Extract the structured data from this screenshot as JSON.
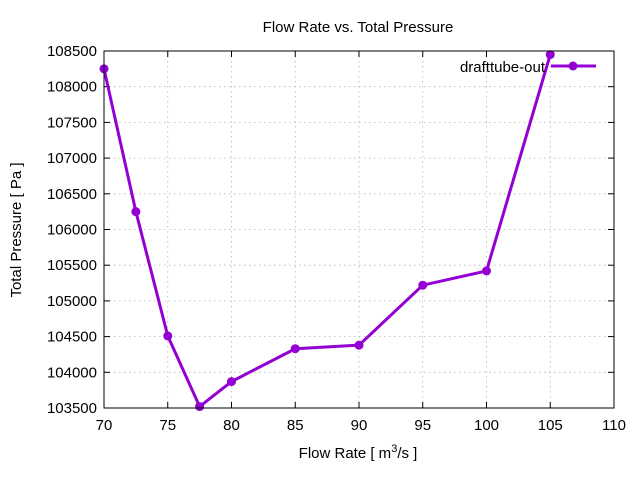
{
  "chart_data": {
    "type": "line",
    "title": "Flow Rate vs. Total Pressure",
    "xlabel_main": "Flow Rate [ m",
    "xlabel_sup": "3",
    "xlabel_tail": "/s ]",
    "ylabel": "Total Pressure [ Pa ]",
    "xlim": [
      70,
      110
    ],
    "ylim": [
      103500,
      108500
    ],
    "x_ticks": [
      70,
      75,
      80,
      85,
      90,
      95,
      100,
      105,
      110
    ],
    "y_ticks": [
      103500,
      104000,
      104500,
      105000,
      105500,
      106000,
      106500,
      107000,
      107500,
      108000,
      108500
    ],
    "grid": true,
    "legend_position": "top-right",
    "series": [
      {
        "name": "drafttube-out",
        "color": "#9400d3",
        "marker": "circle",
        "x": [
          70,
          72.5,
          75,
          77.5,
          80,
          85,
          90,
          95,
          100,
          105
        ],
        "y": [
          108250,
          106250,
          104510,
          103520,
          103870,
          104330,
          104380,
          105220,
          105420,
          108450
        ]
      }
    ]
  }
}
